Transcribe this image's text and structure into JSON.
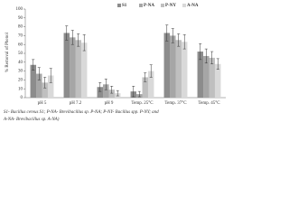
{
  "chart_data": {
    "type": "bar",
    "y_label": "% Removal of Phenol",
    "categories": [
      "pH 5",
      "pH 7.2",
      "pH 9",
      "Temp. 25°C",
      "Temp. 37°C",
      "Temp. 45°C"
    ],
    "series": [
      {
        "name": "S1",
        "color": "#8c8c8c",
        "values": [
          37,
          73,
          12,
          7,
          73,
          52
        ],
        "errors": [
          6,
          8,
          5,
          6,
          9,
          9
        ]
      },
      {
        "name": "P-NA",
        "color": "#a6a6a6",
        "values": [
          27,
          68,
          15,
          4,
          70,
          47
        ],
        "errors": [
          7,
          8,
          6,
          3,
          8,
          8
        ]
      },
      {
        "name": "P-NY",
        "color": "#bfbfbf",
        "values": [
          17,
          65,
          9,
          23,
          65,
          45
        ],
        "errors": [
          6,
          7,
          4,
          5,
          7,
          7
        ]
      },
      {
        "name": "A-NA",
        "color": "#d9d9d9",
        "values": [
          25,
          62,
          5,
          30,
          63,
          38
        ],
        "errors": [
          8,
          9,
          3,
          7,
          8,
          6
        ]
      }
    ],
    "ylim": [
      0,
      100
    ],
    "yticks": [
      0,
      10,
      20,
      30,
      40,
      50,
      60,
      70,
      80,
      90,
      100
    ],
    "legend": "top",
    "caption": [
      "S1- Bacillus cereus S1; P-NA- Brevibacillus sp. P-NA; P-NY- Bacillus spp. P-NY; and",
      "A-NA- Brevibacillus sp. A-NA)"
    ]
  }
}
